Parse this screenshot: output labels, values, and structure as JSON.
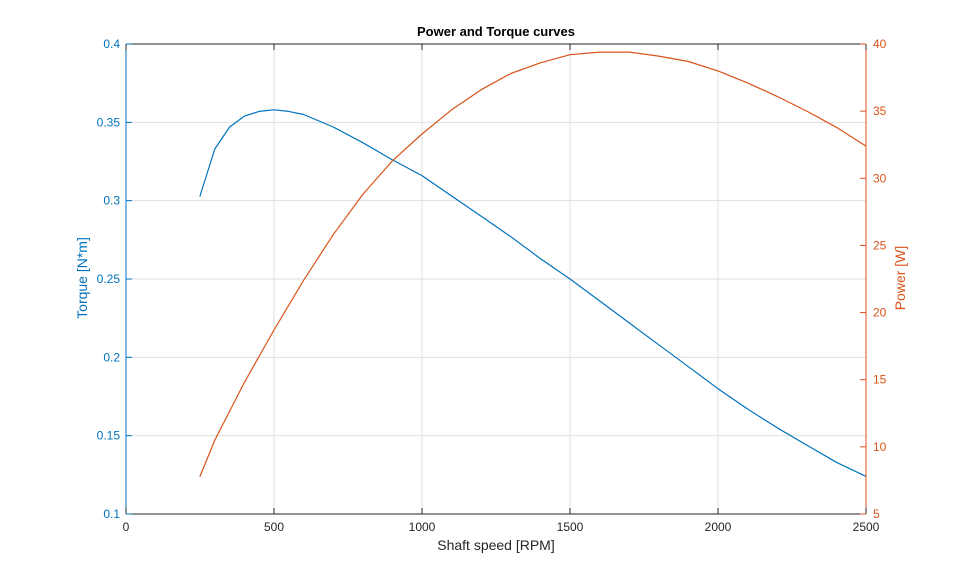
{
  "chart_data": {
    "type": "line",
    "title": "Power and Torque curves",
    "xlabel": "Shaft speed [RPM]",
    "ylabel_left": "Torque [N*m]",
    "ylabel_right": "Power [W]",
    "xlim": [
      0,
      2500
    ],
    "ylim_left": [
      0.1,
      0.4
    ],
    "ylim_right": [
      5,
      40
    ],
    "x_ticks": [
      0,
      500,
      1000,
      1500,
      2000,
      2500
    ],
    "y_left_ticks": [
      0.1,
      0.15,
      0.2,
      0.25,
      0.3,
      0.35,
      0.4
    ],
    "y_right_ticks": [
      5,
      10,
      15,
      20,
      25,
      30,
      35,
      40
    ],
    "grid": true,
    "colors": {
      "torque": "#0072BD",
      "power": "#D95319",
      "axis": "#262626",
      "grid": "#dfdfdf"
    },
    "series": [
      {
        "axis": "left",
        "x": [
          250,
          300,
          350,
          400,
          450,
          500,
          550,
          600,
          700,
          800,
          900,
          1000,
          1100,
          1200,
          1300,
          1400,
          1500,
          1600,
          1700,
          1800,
          1900,
          2000,
          2100,
          2200,
          2300,
          2400,
          2500
        ],
        "values": [
          0.303,
          0.333,
          0.347,
          0.354,
          0.357,
          0.358,
          0.357,
          0.355,
          0.347,
          0.337,
          0.326,
          0.316,
          0.303,
          0.29,
          0.277,
          0.263,
          0.25,
          0.236,
          0.222,
          0.208,
          0.194,
          0.18,
          0.167,
          0.155,
          0.144,
          0.133,
          0.124
        ]
      },
      {
        "axis": "right",
        "x": [
          250,
          300,
          400,
          500,
          600,
          700,
          800,
          900,
          1000,
          1100,
          1200,
          1300,
          1400,
          1500,
          1600,
          1700,
          1800,
          1900,
          2000,
          2100,
          2200,
          2300,
          2400,
          2500
        ],
        "values": [
          7.8,
          10.5,
          14.8,
          18.7,
          22.4,
          25.8,
          28.8,
          31.3,
          33.3,
          35.1,
          36.6,
          37.8,
          38.6,
          39.2,
          39.4,
          39.4,
          39.1,
          38.7,
          38.0,
          37.1,
          36.1,
          35.0,
          33.8,
          32.4
        ]
      }
    ]
  }
}
